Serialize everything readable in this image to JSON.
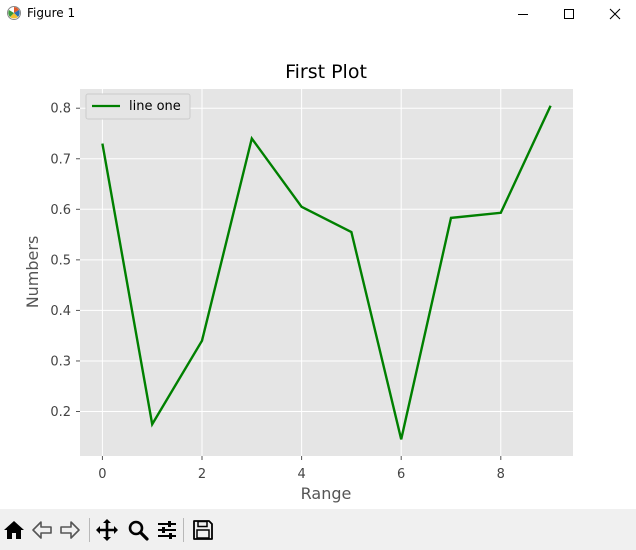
{
  "window": {
    "title": "Figure 1",
    "icon": "matplotlib-icon",
    "controls": [
      "minimize-icon",
      "maximize-icon",
      "close-icon"
    ]
  },
  "toolbar": {
    "buttons": [
      "home-icon",
      "back-arrow-icon",
      "forward-arrow-icon",
      "pan-icon",
      "zoom-icon",
      "configure-subplots-icon",
      "save-icon"
    ]
  },
  "colors": {
    "plot_background": "#e5e5e5",
    "grid": "#ffffff",
    "line": "#008000"
  },
  "chart_data": {
    "type": "line",
    "title": "First Plot",
    "xlabel": "Range",
    "ylabel": "Numbers",
    "x": [
      0,
      1,
      2,
      3,
      4,
      5,
      6,
      7,
      8,
      9
    ],
    "series": [
      {
        "name": "line one",
        "color": "#008000",
        "values": [
          0.73,
          0.175,
          0.34,
          0.74,
          0.605,
          0.555,
          0.145,
          0.583,
          0.593,
          0.805
        ]
      }
    ],
    "xlim": [
      -0.45,
      9.45
    ],
    "ylim": [
      0.112,
      0.838
    ],
    "xticks": [
      "0",
      "2",
      "4",
      "6",
      "8"
    ],
    "yticks": [
      "0.2",
      "0.3",
      "0.4",
      "0.5",
      "0.6",
      "0.7",
      "0.8"
    ],
    "grid": true,
    "legend_position": "upper left"
  }
}
